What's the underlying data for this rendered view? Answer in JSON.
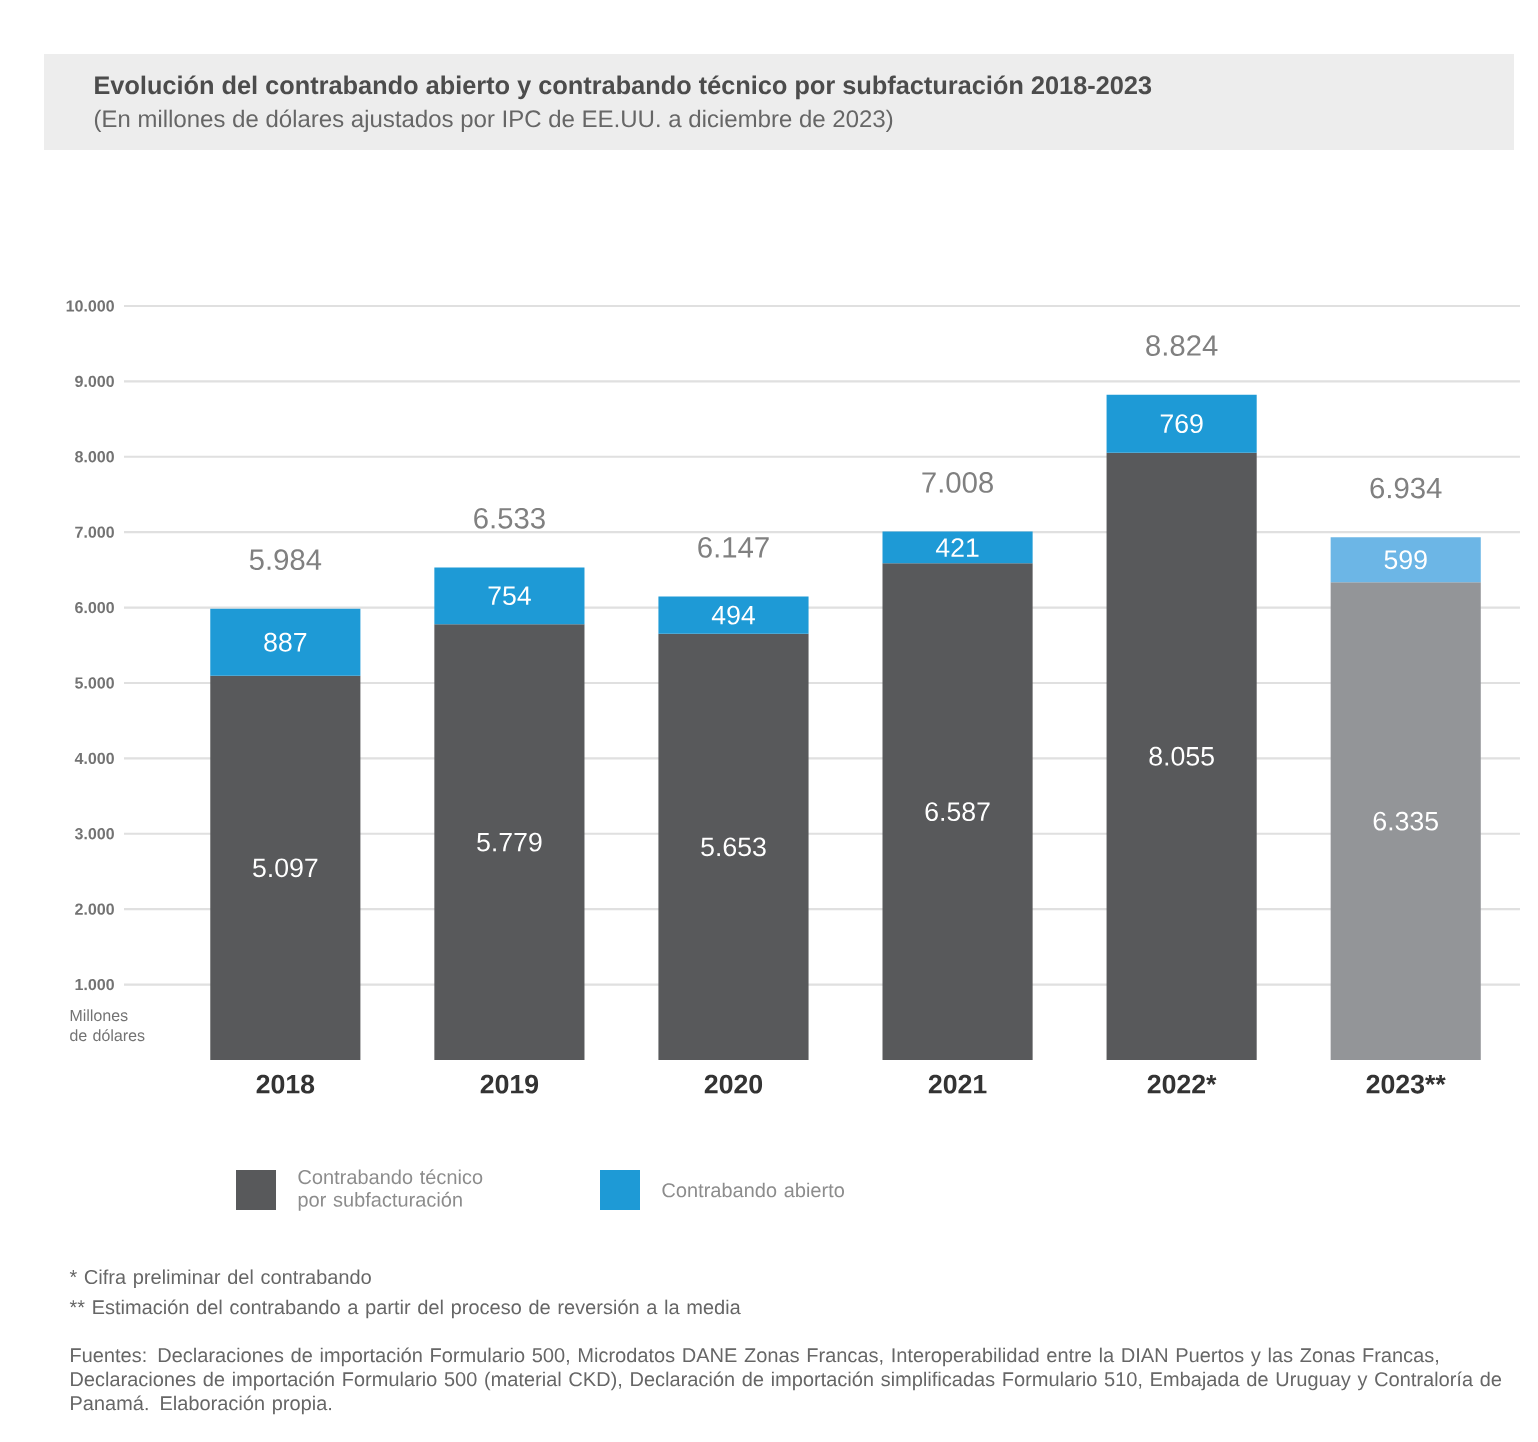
{
  "chart_data": {
    "type": "bar",
    "stacked": true,
    "title": "Evolución del contrabando abierto y contrabando técnico por subfacturación 2018-2023",
    "subtitle": "(En millones de dólares ajustados por IPC de EE.UU. a diciembre de 2023)",
    "ylabel": "Millones de dólares",
    "categories": [
      "2018",
      "2019",
      "2020",
      "2021",
      "2022*",
      "2023**"
    ],
    "series": [
      {
        "name": "Contrabando técnico por subfacturación",
        "color": "#58595b",
        "colors": [
          "#58595b",
          "#58595b",
          "#58595b",
          "#58595b",
          "#58595b",
          "#939598"
        ],
        "values": [
          5097,
          5779,
          5653,
          6587,
          8055,
          6335
        ],
        "value_labels": [
          "5.097",
          "5.779",
          "5.653",
          "6.587",
          "8.055",
          "6.335"
        ]
      },
      {
        "name": "Contrabando abierto",
        "color": "#1e9ad6",
        "colors": [
          "#1e9ad6",
          "#1e9ad6",
          "#1e9ad6",
          "#1e9ad6",
          "#1e9ad6",
          "#6cb6e6"
        ],
        "values": [
          887,
          754,
          494,
          421,
          769,
          599
        ],
        "value_labels": [
          "887",
          "754",
          "494",
          "421",
          "769",
          "599"
        ]
      }
    ],
    "totals": [
      "5.984",
      "6.533",
      "6.147",
      "7.008",
      "8.824",
      "6.934"
    ],
    "ylim": [
      0,
      10000
    ],
    "yticks": [
      {
        "value": 1000,
        "label": "1.000"
      },
      {
        "value": 2000,
        "label": "2.000"
      },
      {
        "value": 3000,
        "label": "3.000"
      },
      {
        "value": 4000,
        "label": "4.000"
      },
      {
        "value": 5000,
        "label": "5.000"
      },
      {
        "value": 6000,
        "label": "6.000"
      },
      {
        "value": 7000,
        "label": "7.000"
      },
      {
        "value": 8000,
        "label": "8.000"
      },
      {
        "value": 9000,
        "label": "9.000"
      },
      {
        "value": 10000,
        "label": "10.000"
      }
    ],
    "grid": "y",
    "legend": "bottom",
    "annotations": [
      "* Cifra preliminar del contrabando",
      "** Estimación del contrabando a partir del proceso de reversión a la media",
      "Fuentes: Declaraciones de importación Formulario 500, Microdatos DANE Zonas Francas, Interoperabilidad entre la DIAN Puertos y las Zonas Francas, Declaraciones de importación Formulario 500 (material CKD), Declaración de importación simplificadas Formulario 510, Embajada de Uruguay y Contraloría de Panamá. Elaboración propia."
    ]
  }
}
